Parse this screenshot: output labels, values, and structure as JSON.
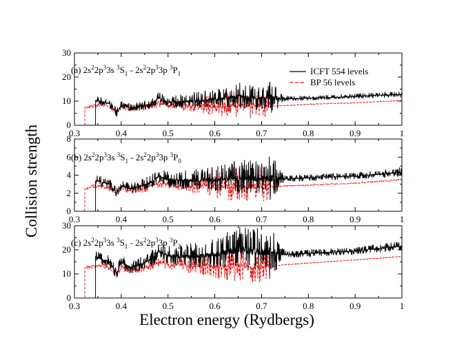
{
  "chart_data": {
    "type": "line",
    "ylabel": "Collision strength",
    "xlabel": "Electron energy (Rydbergs)",
    "xlim": [
      0.3,
      1.0
    ],
    "x_ticks": [
      "0.3",
      "0.4",
      "0.5",
      "0.6",
      "0.7",
      "0.8",
      "0.9",
      "1"
    ],
    "legend": [
      {
        "name": "ICFT 554 levels",
        "color": "#000000",
        "style": "solid"
      },
      {
        "name": "BP 56 levels",
        "color": "#ff0000",
        "style": "dashed"
      }
    ],
    "panels": [
      {
        "id": "a",
        "label_prefix": "(a) 2s",
        "label_parts": [
          {
            "t": "(a) 2s",
            "s": ""
          },
          {
            "t": "2",
            "s": "sup"
          },
          {
            "t": "2p",
            "s": ""
          },
          {
            "t": "3",
            "s": "sup"
          },
          {
            "t": "3s ",
            "s": ""
          },
          {
            "t": "3",
            "s": "sup"
          },
          {
            "t": "S",
            "s": ""
          },
          {
            "t": "1",
            "s": "sub"
          },
          {
            "t": " - 2s",
            "s": ""
          },
          {
            "t": "2",
            "s": "sup"
          },
          {
            "t": "2p",
            "s": ""
          },
          {
            "t": "3",
            "s": "sup"
          },
          {
            "t": "3p ",
            "s": ""
          },
          {
            "t": "3",
            "s": "sup"
          },
          {
            "t": "P",
            "s": ""
          },
          {
            "t": "1",
            "s": "sub"
          }
        ],
        "ylim": [
          0,
          30
        ],
        "y_ticks": [
          "0",
          "10",
          "20",
          "30"
        ],
        "series": [
          {
            "name": "ICFT 554 levels",
            "threshold": 0.345,
            "x": [
              0.345,
              0.36,
              0.375,
              0.39,
              0.4,
              0.42,
              0.45,
              0.47,
              0.48,
              0.5,
              0.55,
              0.6,
              0.65,
              0.7,
              0.72,
              0.75,
              0.8,
              0.85,
              0.9,
              0.95,
              1.0
            ],
            "y": [
              10.5,
              9.8,
              9.0,
              5.0,
              8.5,
              7.2,
              8.0,
              9.5,
              11.5,
              9.5,
              10.0,
              10.8,
              12.0,
              11.0,
              11.5,
              11.0,
              11.2,
              11.5,
              12.0,
              12.5,
              12.8
            ],
            "amp": [
              0.8,
              0.8,
              0.8,
              1.0,
              0.8,
              0.8,
              1.0,
              1.2,
              1.2,
              1.2,
              1.8,
              2.0,
              3.0,
              2.8,
              2.5,
              0.6,
              0.5,
              0.5,
              0.5,
              0.6,
              0.8
            ]
          },
          {
            "name": "BP 56 levels",
            "threshold": 0.322,
            "x": [
              0.322,
              0.33,
              0.35,
              0.37,
              0.39,
              0.4,
              0.42,
              0.45,
              0.48,
              0.5,
              0.55,
              0.6,
              0.65,
              0.7,
              0.71,
              0.72,
              0.75,
              0.8,
              0.85,
              0.9,
              0.95,
              1.0
            ],
            "y": [
              7.2,
              7.5,
              8.3,
              8.0,
              5.2,
              7.5,
              6.8,
              7.5,
              9.0,
              8.6,
              8.3,
              7.8,
              8.3,
              8.0,
              8.3,
              7.9,
              8.2,
              8.7,
              9.0,
              9.3,
              9.8,
              10.2
            ],
            "amp": [
              0.3,
              0.4,
              0.5,
              0.5,
              0.6,
              0.6,
              0.6,
              0.8,
              1.0,
              1.0,
              1.6,
              2.4,
              3.0,
              3.2,
              3.4,
              0.1,
              0.1,
              0.1,
              0.1,
              0.1,
              0.1,
              0.1
            ]
          }
        ]
      },
      {
        "id": "b",
        "label_parts": [
          {
            "t": "(b) 2s",
            "s": ""
          },
          {
            "t": "2",
            "s": "sup"
          },
          {
            "t": "2p",
            "s": ""
          },
          {
            "t": "3",
            "s": "sup"
          },
          {
            "t": "3s ",
            "s": ""
          },
          {
            "t": "3",
            "s": "sup"
          },
          {
            "t": "S",
            "s": ""
          },
          {
            "t": "1",
            "s": "sub"
          },
          {
            "t": " - 2s",
            "s": ""
          },
          {
            "t": "2",
            "s": "sup"
          },
          {
            "t": "2p",
            "s": ""
          },
          {
            "t": "3",
            "s": "sup"
          },
          {
            "t": "3p ",
            "s": ""
          },
          {
            "t": "3",
            "s": "sup"
          },
          {
            "t": "P",
            "s": ""
          },
          {
            "t": "0",
            "s": "sub"
          }
        ],
        "ylim": [
          0,
          8
        ],
        "y_ticks": [
          "0",
          "2",
          "4",
          "6",
          "8"
        ],
        "series": [
          {
            "name": "ICFT 554 levels",
            "threshold": 0.345,
            "x": [
              0.345,
              0.36,
              0.375,
              0.39,
              0.4,
              0.42,
              0.45,
              0.47,
              0.48,
              0.5,
              0.55,
              0.6,
              0.65,
              0.7,
              0.72,
              0.75,
              0.8,
              0.85,
              0.9,
              0.95,
              1.0
            ],
            "y": [
              3.4,
              3.2,
              3.0,
              2.0,
              2.8,
              2.5,
              2.9,
              3.4,
              3.9,
              3.5,
              3.4,
              3.5,
              3.7,
              3.6,
              3.7,
              3.6,
              3.7,
              3.8,
              3.9,
              4.1,
              4.3
            ],
            "amp": [
              0.3,
              0.3,
              0.3,
              0.3,
              0.3,
              0.3,
              0.4,
              0.4,
              0.4,
              0.5,
              0.6,
              0.7,
              1.0,
              1.0,
              0.9,
              0.2,
              0.2,
              0.2,
              0.2,
              0.2,
              0.3
            ]
          },
          {
            "name": "BP 56 levels",
            "threshold": 0.322,
            "x": [
              0.322,
              0.33,
              0.35,
              0.37,
              0.39,
              0.4,
              0.42,
              0.45,
              0.48,
              0.5,
              0.55,
              0.6,
              0.65,
              0.7,
              0.71,
              0.72,
              0.75,
              0.8,
              0.85,
              0.9,
              0.95,
              1.0
            ],
            "y": [
              2.5,
              2.6,
              2.8,
              2.7,
              2.0,
              2.5,
              2.3,
              2.6,
              3.1,
              3.0,
              2.8,
              2.7,
              2.8,
              2.7,
              2.9,
              2.7,
              2.8,
              2.9,
              3.0,
              3.1,
              3.3,
              3.5
            ],
            "amp": [
              0.1,
              0.1,
              0.2,
              0.2,
              0.2,
              0.2,
              0.2,
              0.3,
              0.3,
              0.3,
              0.5,
              0.8,
              1.0,
              1.1,
              1.2,
              0.05,
              0.05,
              0.05,
              0.05,
              0.05,
              0.05,
              0.05
            ]
          }
        ]
      },
      {
        "id": "c",
        "label_parts": [
          {
            "t": "(c) 2s",
            "s": ""
          },
          {
            "t": "2",
            "s": "sup"
          },
          {
            "t": "2p",
            "s": ""
          },
          {
            "t": "3",
            "s": "sup"
          },
          {
            "t": "3s ",
            "s": ""
          },
          {
            "t": "3",
            "s": "sup"
          },
          {
            "t": "S",
            "s": ""
          },
          {
            "t": "1",
            "s": "sub"
          },
          {
            "t": " - 2s",
            "s": ""
          },
          {
            "t": "2",
            "s": "sup"
          },
          {
            "t": "2p",
            "s": ""
          },
          {
            "t": "3",
            "s": "sup"
          },
          {
            "t": "3p ",
            "s": ""
          },
          {
            "t": "3",
            "s": "sup"
          },
          {
            "t": "P",
            "s": ""
          },
          {
            "t": "2",
            "s": "sub"
          }
        ],
        "ylim": [
          0,
          30
        ],
        "y_ticks": [
          "0",
          "10",
          "20",
          "30"
        ],
        "series": [
          {
            "name": "ICFT 554 levels",
            "threshold": 0.345,
            "x": [
              0.345,
              0.36,
              0.375,
              0.39,
              0.4,
              0.42,
              0.45,
              0.47,
              0.48,
              0.5,
              0.55,
              0.6,
              0.65,
              0.7,
              0.72,
              0.75,
              0.8,
              0.85,
              0.9,
              0.95,
              1.0
            ],
            "y": [
              17.0,
              16.0,
              15.0,
              10.0,
              15.0,
              12.5,
              14.5,
              17.0,
              19.5,
              17.5,
              17.0,
              18.0,
              20.0,
              19.0,
              19.0,
              18.0,
              18.5,
              19.0,
              19.5,
              20.5,
              21.5
            ],
            "amp": [
              1.2,
              1.2,
              1.2,
              1.5,
              1.5,
              1.5,
              1.5,
              1.8,
              1.8,
              2.0,
              2.8,
              3.2,
              5.0,
              5.0,
              4.0,
              0.8,
              0.8,
              0.8,
              0.8,
              0.9,
              1.0
            ]
          },
          {
            "name": "BP 56 levels",
            "threshold": 0.322,
            "x": [
              0.322,
              0.33,
              0.35,
              0.37,
              0.39,
              0.4,
              0.42,
              0.45,
              0.48,
              0.5,
              0.55,
              0.6,
              0.65,
              0.7,
              0.71,
              0.72,
              0.75,
              0.8,
              0.85,
              0.9,
              0.95,
              1.0
            ],
            "y": [
              12.5,
              12.8,
              13.5,
              13.0,
              9.5,
              12.5,
              11.5,
              12.5,
              14.5,
              14.0,
              13.5,
              13.0,
              13.5,
              13.0,
              13.5,
              13.2,
              13.8,
              14.5,
              15.2,
              15.8,
              16.5,
              17.3
            ],
            "amp": [
              0.4,
              0.5,
              0.7,
              0.7,
              0.8,
              0.8,
              0.8,
              1.0,
              1.2,
              1.2,
              2.0,
              3.0,
              4.0,
              4.5,
              4.8,
              0.1,
              0.1,
              0.1,
              0.1,
              0.1,
              0.1,
              0.1
            ]
          }
        ]
      }
    ]
  },
  "colors": {
    "icft": "#000000",
    "bp": "#ff0000",
    "axes": "#000000",
    "background": "#ffffff"
  }
}
